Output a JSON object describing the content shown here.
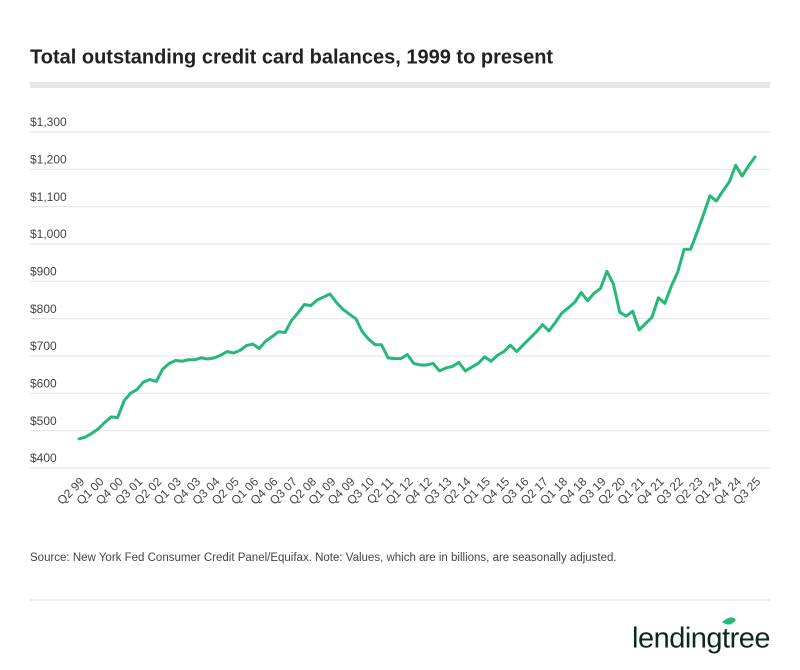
{
  "chart_data": {
    "type": "line",
    "title": "Total outstanding credit card balances, 1999 to present",
    "source": "Source: New York Fed Consumer Credit Panel/Equifax. Note: Values, which are in billions, are seasonally adjusted.",
    "brand": "lendingtree",
    "color": "#25b877",
    "grid": true,
    "categories": [
      "Q2 99",
      null,
      null,
      "Q1 00",
      null,
      null,
      "Q4 00",
      null,
      null,
      "Q3 01",
      null,
      null,
      "Q2 02",
      null,
      null,
      "Q1 03",
      null,
      null,
      "Q4 03",
      null,
      null,
      "Q3 04",
      null,
      null,
      "Q2 05",
      null,
      null,
      "Q1 06",
      null,
      null,
      "Q4 06",
      null,
      null,
      "Q3 07",
      null,
      null,
      "Q2 08",
      null,
      null,
      "Q1 09",
      null,
      null,
      "Q4 09",
      null,
      null,
      "Q3 10",
      null,
      null,
      "Q2 11",
      null,
      null,
      "Q1 12",
      null,
      null,
      "Q4 12",
      null,
      null,
      "Q3 13",
      null,
      null,
      "Q2 14",
      null,
      null,
      "Q1 15",
      null,
      null,
      "Q4 15",
      null,
      null,
      "Q3 16",
      null,
      null,
      "Q2 17",
      null,
      null,
      "Q1 18",
      null,
      null,
      "Q4 18",
      null,
      null,
      "Q3 19",
      null,
      null,
      "Q2 20",
      null,
      null,
      "Q1 21",
      null,
      null,
      "Q4 21",
      null,
      null,
      "Q3 22",
      null,
      null,
      "Q2 23",
      null,
      null,
      "Q1 24",
      null,
      null,
      "Q4 24",
      null,
      null,
      "Q3 25"
    ],
    "values": [
      478,
      483,
      493,
      505,
      522,
      537,
      535,
      580,
      600,
      610,
      630,
      637,
      632,
      665,
      680,
      688,
      686,
      690,
      690,
      695,
      692,
      695,
      702,
      712,
      708,
      715,
      728,
      732,
      720,
      740,
      752,
      765,
      763,
      795,
      815,
      838,
      835,
      850,
      858,
      866,
      843,
      825,
      812,
      800,
      765,
      745,
      730,
      730,
      695,
      693,
      693,
      704,
      680,
      676,
      676,
      680,
      660,
      668,
      672,
      683,
      660,
      670,
      680,
      698,
      686,
      702,
      712,
      729,
      712,
      730,
      747,
      764,
      784,
      767,
      790,
      815,
      829,
      844,
      870,
      848,
      868,
      881,
      927,
      893,
      817,
      807,
      820,
      770,
      787,
      804,
      856,
      841,
      887,
      925,
      986,
      986,
      1031,
      1079,
      1129,
      1115,
      1142,
      1166,
      1211,
      1182,
      1209,
      1233
    ],
    "ylim": [
      400,
      1300
    ],
    "yticks": [
      {
        "value": 400,
        "label": "$400"
      },
      {
        "value": 500,
        "label": "$500"
      },
      {
        "value": 600,
        "label": "$600"
      },
      {
        "value": 700,
        "label": "$700"
      },
      {
        "value": 800,
        "label": "$800"
      },
      {
        "value": 900,
        "label": "$900"
      },
      {
        "value": 1000,
        "label": "$1,000"
      },
      {
        "value": 1100,
        "label": "$1,100"
      },
      {
        "value": 1200,
        "label": "$1,200"
      },
      {
        "value": 1300,
        "label": "$1,300"
      }
    ]
  }
}
